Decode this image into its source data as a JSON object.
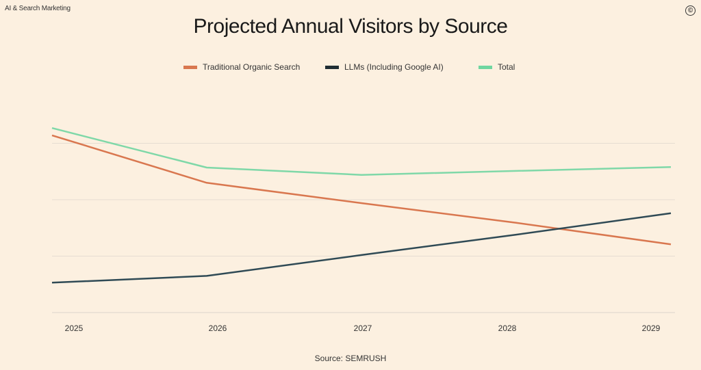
{
  "header": {
    "brand": "AI & Search Marketing",
    "copyright_symbol": "©"
  },
  "source": "Source: SEMRUSH",
  "chart_data": {
    "type": "line",
    "title": "Projected Annual Visitors by Source",
    "xlabel": "",
    "ylabel": "",
    "x": [
      "2025",
      "2026",
      "2027",
      "2028",
      "2029"
    ],
    "ylim": [
      0,
      3.5
    ],
    "y_gridlines": [
      1,
      2,
      3
    ],
    "y_tick_labels_shown": false,
    "grid": true,
    "legend_position": "top-center",
    "series": [
      {
        "name": "Traditional Organic Search",
        "color": "#d9774f",
        "values": [
          3.14,
          2.3,
          1.94,
          1.59,
          1.21
        ]
      },
      {
        "name": "LLMs (Including Google AI)",
        "color": "#2f4a55",
        "values": [
          0.53,
          0.65,
          1.02,
          1.38,
          1.76
        ]
      },
      {
        "name": "Total",
        "color": "#7fd8a8",
        "values": [
          3.27,
          2.57,
          2.44,
          2.51,
          2.58
        ]
      }
    ],
    "legend_swatch_colors": [
      "#d9774f",
      "#1f2d33",
      "#6fd6a0"
    ]
  }
}
